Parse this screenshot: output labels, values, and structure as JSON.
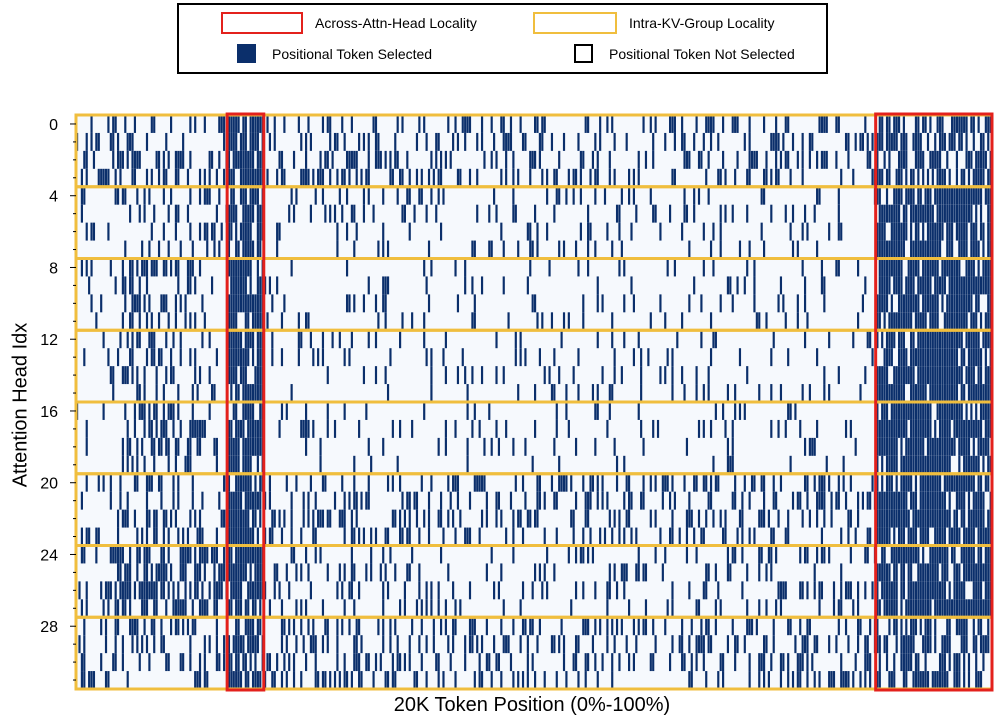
{
  "legend": {
    "items": [
      {
        "label": "Across-Attn-Head Locality",
        "style": "outline",
        "color": "#e3211c"
      },
      {
        "label": "Intra-KV-Group Locality",
        "style": "outline",
        "color": "#f0be3e"
      },
      {
        "label": "Positional Token Selected",
        "style": "filled",
        "color": "#0b2f6b"
      },
      {
        "label": "Positional Token Not Selected",
        "style": "outline",
        "color": "#000000"
      }
    ]
  },
  "chart_data": {
    "type": "heatmap",
    "title": "",
    "xlabel": "20K Token Position (0%-100%)",
    "ylabel": "Attention Head Idx",
    "y_range": [
      0,
      31
    ],
    "y_ticks": [
      0,
      4,
      8,
      12,
      16,
      20,
      24,
      28
    ],
    "heads": 32,
    "kv_group_size": 4,
    "x_range_percent": [
      0,
      100
    ],
    "values": "binary token selection per attention head (selected / not selected)",
    "colors": {
      "selected": "#0b2f6b",
      "not_selected": "#f6f9fd"
    },
    "highlights": {
      "across_attn_head_locality": [
        [
          16.5,
          20.5
        ],
        [
          87.3,
          100
        ]
      ],
      "intra_kv_group_locality": "each group of 4 consecutive heads (0-3, 4-7, 8-11, 12-15, 16-19, 20-23, 24-27, 28-31)"
    },
    "grid": false
  }
}
